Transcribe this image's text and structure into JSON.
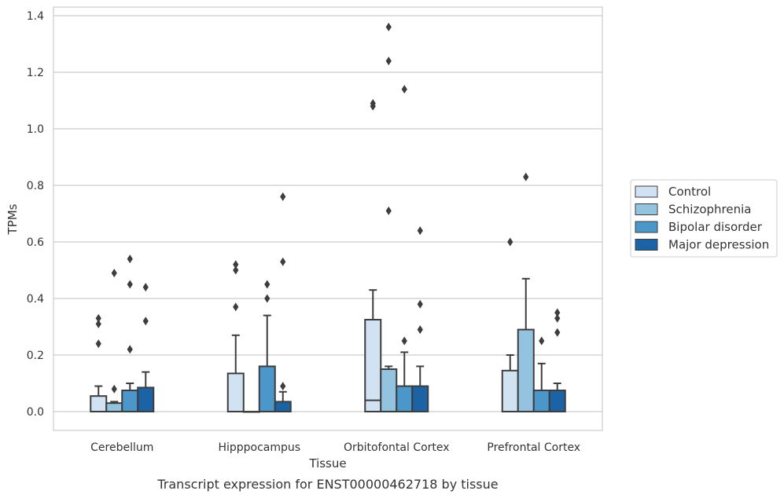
{
  "chart_data": {
    "type": "box",
    "title": "",
    "caption": "Transcript expression for ENST00000462718 by tissue",
    "xlabel": "Tissue",
    "ylabel": "TPMs",
    "ylim": [
      -0.065,
      1.43
    ],
    "yticks": [
      "0.0",
      "0.2",
      "0.4",
      "0.6",
      "0.8",
      "1.0",
      "1.2",
      "1.4"
    ],
    "ytick_values": [
      0.0,
      0.2,
      0.4,
      0.6,
      0.8,
      1.0,
      1.2,
      1.4
    ],
    "categories": [
      "Cerebellum",
      "Hipppocampus",
      "Orbitofontal Cortex",
      "Prefrontal Cortex"
    ],
    "grid": "horizontal",
    "legend_position": "right",
    "colors": {
      "Control": "#d1e2f2",
      "Schizophrenia": "#93c3df",
      "Bipolar disorder": "#4b97c9",
      "Major depression": "#1b63a5",
      "edge": "#3d3d3d",
      "grid": "#cccccc"
    },
    "series": [
      {
        "name": "Control",
        "boxes": [
          {
            "q1": 0.0,
            "median": 0.0,
            "q3": 0.055,
            "whisker_low": 0.0,
            "whisker_high": 0.09,
            "outliers": [
              0.24,
              0.31,
              0.33
            ]
          },
          {
            "q1": 0.0,
            "median": 0.0,
            "q3": 0.135,
            "whisker_low": 0.0,
            "whisker_high": 0.27,
            "outliers": [
              0.37,
              0.5,
              0.52
            ]
          },
          {
            "q1": 0.0,
            "median": 0.04,
            "q3": 0.325,
            "whisker_low": 0.0,
            "whisker_high": 0.43,
            "outliers": [
              1.08,
              1.09
            ]
          },
          {
            "q1": 0.0,
            "median": 0.0,
            "q3": 0.145,
            "whisker_low": 0.0,
            "whisker_high": 0.2,
            "outliers": [
              0.6
            ]
          }
        ]
      },
      {
        "name": "Schizophrenia",
        "boxes": [
          {
            "q1": 0.0,
            "median": 0.0,
            "q3": 0.03,
            "whisker_low": 0.0,
            "whisker_high": 0.035,
            "outliers": [
              0.08,
              0.49
            ]
          },
          {
            "q1": 0.0,
            "median": 0.0,
            "q3": 0.0,
            "whisker_low": 0.0,
            "whisker_high": 0.0,
            "outliers": []
          },
          {
            "q1": 0.0,
            "median": 0.0,
            "q3": 0.15,
            "whisker_low": 0.0,
            "whisker_high": 0.16,
            "outliers": [
              0.71,
              1.24,
              1.36
            ]
          },
          {
            "q1": 0.0,
            "median": 0.0,
            "q3": 0.29,
            "whisker_low": 0.0,
            "whisker_high": 0.47,
            "outliers": [
              0.83
            ]
          }
        ]
      },
      {
        "name": "Bipolar disorder",
        "boxes": [
          {
            "q1": 0.0,
            "median": 0.0,
            "q3": 0.075,
            "whisker_low": 0.0,
            "whisker_high": 0.1,
            "outliers": [
              0.22,
              0.45,
              0.54
            ]
          },
          {
            "q1": 0.0,
            "median": 0.0,
            "q3": 0.16,
            "whisker_low": 0.0,
            "whisker_high": 0.34,
            "outliers": [
              0.4,
              0.45
            ]
          },
          {
            "q1": 0.0,
            "median": 0.0,
            "q3": 0.09,
            "whisker_low": 0.0,
            "whisker_high": 0.21,
            "outliers": [
              0.25,
              1.14
            ]
          },
          {
            "q1": 0.0,
            "median": 0.0,
            "q3": 0.075,
            "whisker_low": 0.0,
            "whisker_high": 0.17,
            "outliers": [
              0.25
            ]
          }
        ]
      },
      {
        "name": "Major depression",
        "boxes": [
          {
            "q1": 0.0,
            "median": 0.0,
            "q3": 0.085,
            "whisker_low": 0.0,
            "whisker_high": 0.14,
            "outliers": [
              0.32,
              0.44
            ]
          },
          {
            "q1": 0.0,
            "median": 0.0,
            "q3": 0.035,
            "whisker_low": 0.0,
            "whisker_high": 0.07,
            "outliers": [
              0.09,
              0.53,
              0.76
            ]
          },
          {
            "q1": 0.0,
            "median": 0.0,
            "q3": 0.09,
            "whisker_low": 0.0,
            "whisker_high": 0.16,
            "outliers": [
              0.29,
              0.38,
              0.64
            ]
          },
          {
            "q1": 0.0,
            "median": 0.0,
            "q3": 0.075,
            "whisker_low": 0.0,
            "whisker_high": 0.1,
            "outliers": [
              0.28,
              0.33,
              0.35
            ]
          }
        ]
      }
    ]
  }
}
